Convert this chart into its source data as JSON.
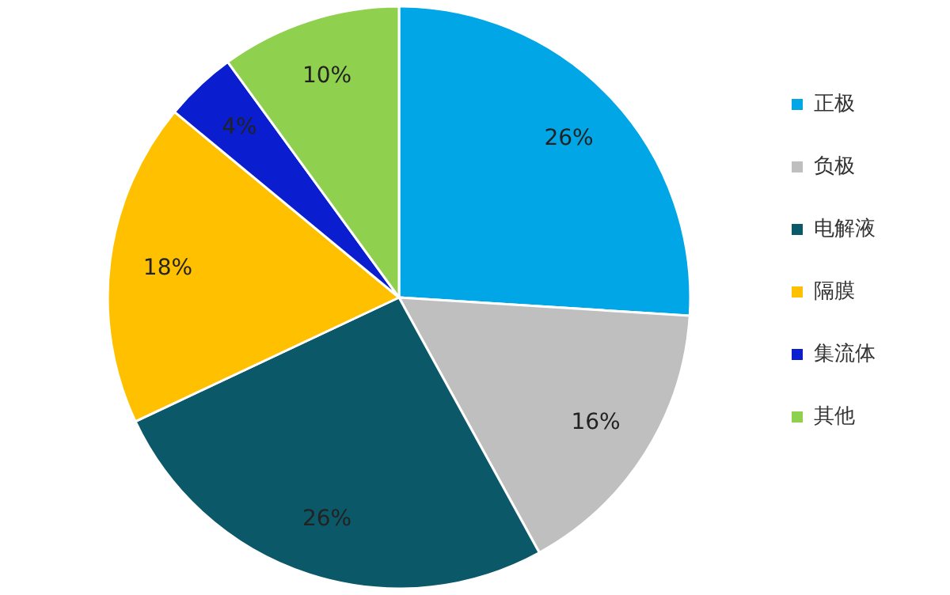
{
  "chart_data": {
    "type": "pie",
    "categories": [
      "正极",
      "负极",
      "电解液",
      "隔膜",
      "集流体",
      "其他"
    ],
    "values": [
      26,
      16,
      26,
      18,
      4,
      10
    ],
    "colors": [
      "#00a6e6",
      "#bfbfbf",
      "#0b5868",
      "#ffc000",
      "#0a1ed0",
      "#8fd14f"
    ],
    "value_labels": [
      "26%",
      "16%",
      "26%",
      "18%",
      "4%",
      "10%"
    ],
    "legend": "right"
  }
}
